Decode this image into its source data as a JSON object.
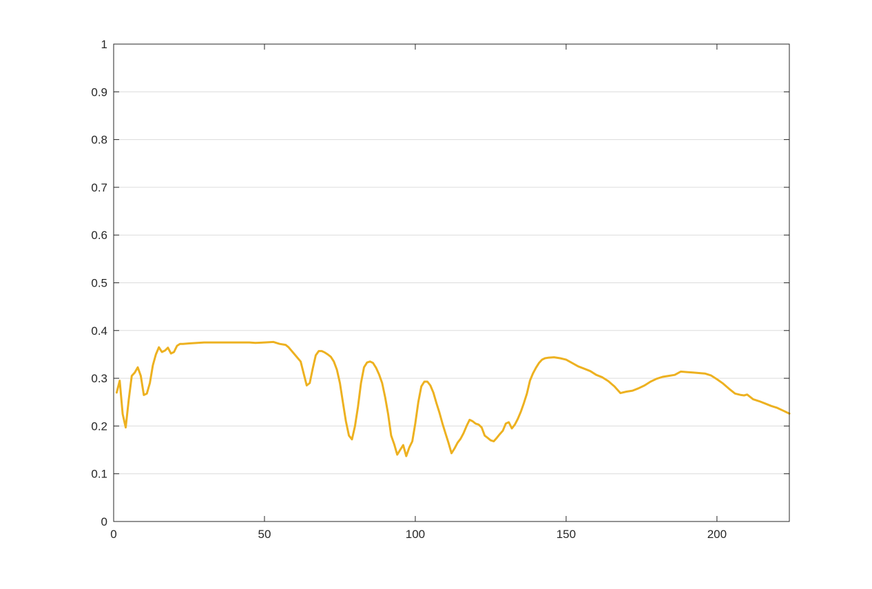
{
  "chart_data": {
    "type": "line",
    "title": "",
    "xlabel": "",
    "ylabel": "",
    "xlim": [
      0,
      224
    ],
    "ylim": [
      0,
      1
    ],
    "x_ticks": [
      0,
      50,
      100,
      150,
      200
    ],
    "x_tick_labels": [
      "0",
      "50",
      "100",
      "150",
      "200"
    ],
    "y_ticks": [
      0,
      0.1,
      0.2,
      0.3,
      0.4,
      0.5,
      0.6,
      0.7,
      0.8,
      0.9,
      1
    ],
    "y_tick_labels": [
      "0",
      "0.1",
      "0.2",
      "0.3",
      "0.4",
      "0.5",
      "0.6",
      "0.7",
      "0.8",
      "0.9",
      "1"
    ],
    "grid": "horizontal",
    "colors": {
      "line": "#EDB120",
      "grid": "#dcdcdc",
      "axes": "#262626"
    },
    "series": [
      {
        "x": [
          1,
          2,
          3,
          4,
          5,
          6,
          7,
          8,
          9,
          10,
          11,
          12,
          13,
          14,
          15,
          16,
          17,
          18,
          19,
          20,
          21,
          22,
          23,
          25,
          30,
          35,
          40,
          45,
          47,
          50,
          53,
          55,
          57,
          58,
          60,
          62,
          63,
          64,
          65,
          66,
          67,
          68,
          69,
          70,
          71,
          72,
          73,
          74,
          75,
          76,
          77,
          78,
          79,
          80,
          81,
          82,
          83,
          84,
          85,
          86,
          87,
          88,
          89,
          90,
          91,
          92,
          93,
          94,
          95,
          96,
          97,
          98,
          99,
          100,
          101,
          102,
          103,
          104,
          105,
          106,
          107,
          108,
          109,
          110,
          111,
          112,
          113,
          114,
          115,
          116,
          117,
          118,
          119,
          120,
          121,
          122,
          123,
          124,
          125,
          126,
          127,
          128,
          129,
          130,
          131,
          132,
          133,
          134,
          135,
          136,
          137,
          138,
          139,
          140,
          141,
          142,
          143,
          144,
          146,
          148,
          150,
          152,
          154,
          156,
          158,
          160,
          162,
          164,
          166,
          168,
          170,
          172,
          174,
          176,
          178,
          180,
          182,
          184,
          186,
          188,
          190,
          192,
          194,
          196,
          198,
          200,
          202,
          204,
          206,
          208,
          209,
          210,
          212,
          214,
          216,
          218,
          220,
          222,
          224
        ],
        "values": [
          0.27,
          0.295,
          0.225,
          0.197,
          0.255,
          0.305,
          0.312,
          0.323,
          0.305,
          0.265,
          0.268,
          0.29,
          0.327,
          0.35,
          0.365,
          0.355,
          0.358,
          0.364,
          0.352,
          0.355,
          0.368,
          0.372,
          0.372,
          0.373,
          0.375,
          0.375,
          0.375,
          0.375,
          0.374,
          0.375,
          0.376,
          0.372,
          0.37,
          0.365,
          0.35,
          0.335,
          0.31,
          0.285,
          0.29,
          0.32,
          0.348,
          0.357,
          0.357,
          0.354,
          0.35,
          0.345,
          0.335,
          0.318,
          0.29,
          0.25,
          0.21,
          0.18,
          0.172,
          0.2,
          0.24,
          0.29,
          0.323,
          0.333,
          0.335,
          0.332,
          0.322,
          0.308,
          0.29,
          0.26,
          0.225,
          0.18,
          0.162,
          0.14,
          0.15,
          0.16,
          0.137,
          0.155,
          0.168,
          0.205,
          0.25,
          0.283,
          0.293,
          0.293,
          0.285,
          0.27,
          0.248,
          0.228,
          0.205,
          0.185,
          0.165,
          0.143,
          0.153,
          0.165,
          0.173,
          0.185,
          0.2,
          0.213,
          0.21,
          0.205,
          0.203,
          0.197,
          0.18,
          0.175,
          0.17,
          0.168,
          0.175,
          0.183,
          0.19,
          0.205,
          0.208,
          0.195,
          0.203,
          0.215,
          0.23,
          0.248,
          0.268,
          0.295,
          0.31,
          0.322,
          0.332,
          0.339,
          0.342,
          0.343,
          0.344,
          0.342,
          0.339,
          0.332,
          0.325,
          0.32,
          0.315,
          0.307,
          0.302,
          0.294,
          0.283,
          0.269,
          0.272,
          0.274,
          0.279,
          0.285,
          0.293,
          0.299,
          0.303,
          0.305,
          0.307,
          0.314,
          0.313,
          0.312,
          0.311,
          0.31,
          0.306,
          0.298,
          0.289,
          0.278,
          0.268,
          0.265,
          0.264,
          0.266,
          0.256,
          0.252,
          0.247,
          0.242,
          0.238,
          0.232,
          0.226
        ]
      }
    ]
  }
}
